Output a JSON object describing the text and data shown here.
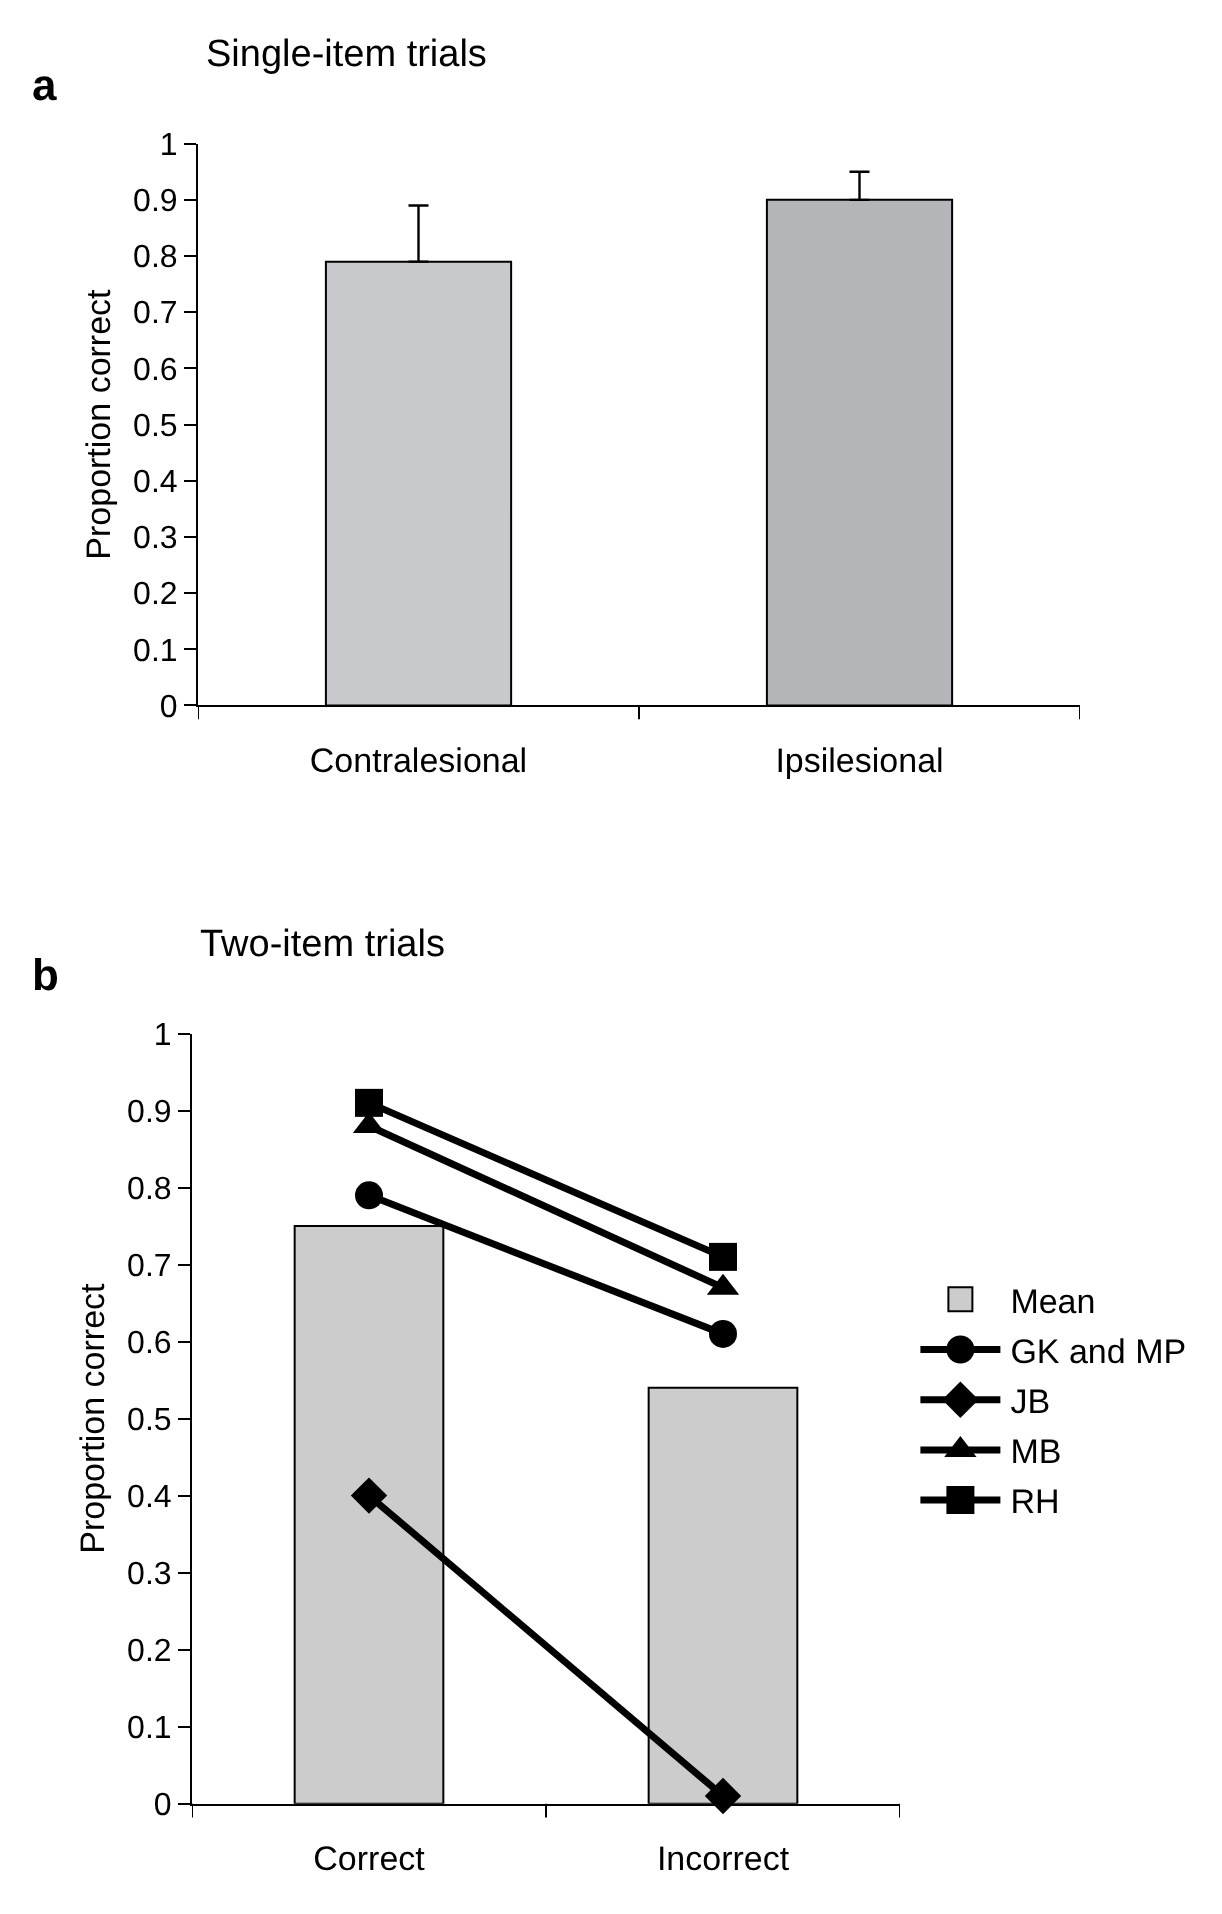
{
  "chart_data": [
    {
      "type": "bar",
      "title": "Single-item trials",
      "ylabel": "Proportion correct",
      "categories": [
        "Contralesional",
        "Ipsilesional"
      ],
      "values": [
        0.79,
        0.9
      ],
      "colors": [
        "#c8c9cd",
        "#b4b5b8"
      ],
      "errors": [
        [
          0.79,
          0.89
        ],
        [
          0.9,
          0.95
        ]
      ],
      "ylim": [
        0,
        1
      ],
      "yticks": [
        0,
        0.1,
        0.2,
        0.3,
        0.4,
        0.5,
        0.6,
        0.7,
        0.8,
        0.9,
        1
      ],
      "annotations": [
        "a"
      ]
    },
    {
      "type": "bar",
      "title": "Two-item trials",
      "ylabel": "Proportion correct",
      "categories": [
        "Correct",
        "Incorrect"
      ],
      "series": [
        {
          "name": "Mean",
          "color": "#cccccc",
          "values": [
            0.75,
            0.54
          ]
        },
        {
          "name": "GK and MP",
          "type": "line",
          "marker": "circle",
          "color": "#000000",
          "values": [
            0.79,
            0.61
          ]
        },
        {
          "name": "JB",
          "type": "line",
          "marker": "diamond",
          "color": "#000000",
          "values": [
            0.4,
            0.01
          ]
        },
        {
          "name": "MB",
          "type": "line",
          "marker": "triangle",
          "color": "#000000",
          "values": [
            0.88,
            0.67
          ]
        },
        {
          "name": "RH",
          "type": "line",
          "marker": "square",
          "color": "#000000",
          "values": [
            0.91,
            0.71
          ]
        }
      ],
      "ylim": [
        0,
        1
      ],
      "yticks": [
        0,
        0.1,
        0.2,
        0.3,
        0.4,
        0.5,
        0.6,
        0.7,
        0.8,
        0.9,
        1
      ],
      "legend": "right",
      "annotations": [
        "b"
      ]
    }
  ]
}
